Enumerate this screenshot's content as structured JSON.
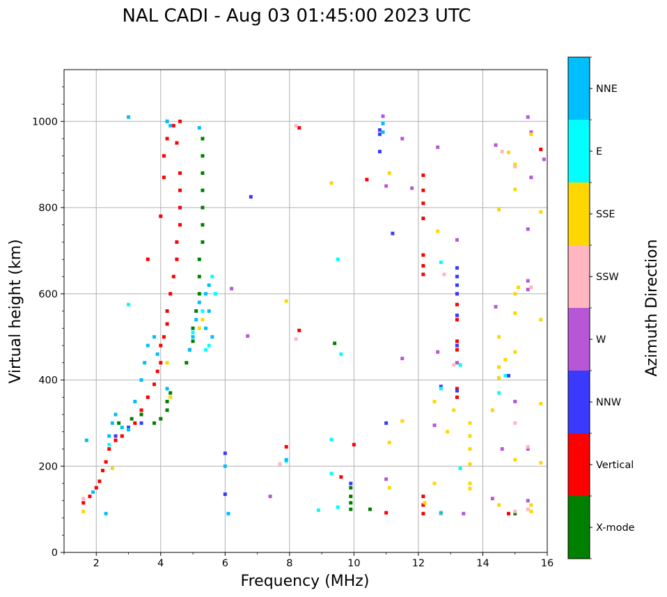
{
  "chart_data": {
    "type": "scatter",
    "title": "NAL CADI - Aug 03 01:45:00 2023 UTC",
    "xlabel": "Frequency (MHz)",
    "ylabel": "Virtual height (km)",
    "xlim": [
      1,
      16
    ],
    "ylim": [
      0,
      1120
    ],
    "xticks": [
      "2",
      "4",
      "6",
      "8",
      "10",
      "12",
      "14",
      "16"
    ],
    "yticks": [
      "0",
      "200",
      "400",
      "600",
      "800",
      "1000"
    ],
    "grid": true,
    "colorbar": {
      "label": "Azimuth Direction",
      "position": "right",
      "categories": [
        {
          "name": "X-mode",
          "color": "#008000"
        },
        {
          "name": "Vertical",
          "color": "#ff0000"
        },
        {
          "name": "NNW",
          "color": "#3a3aff"
        },
        {
          "name": "W",
          "color": "#b857d6"
        },
        {
          "name": "SSW",
          "color": "#ffb6c1"
        },
        {
          "name": "SSE",
          "color": "#ffd700"
        },
        {
          "name": "E",
          "color": "#00ffff"
        },
        {
          "name": "NNE",
          "color": "#00bfff"
        }
      ]
    },
    "series": [
      {
        "name": "X-mode",
        "points": [
          [
            2.7,
            300
          ],
          [
            3.1,
            310
          ],
          [
            3.4,
            320
          ],
          [
            3.8,
            300
          ],
          [
            4.0,
            310
          ],
          [
            4.2,
            330
          ],
          [
            4.2,
            350
          ],
          [
            4.3,
            370
          ],
          [
            4.8,
            440
          ],
          [
            4.9,
            470
          ],
          [
            5.0,
            490
          ],
          [
            5.0,
            520
          ],
          [
            5.1,
            560
          ],
          [
            5.2,
            600
          ],
          [
            5.2,
            640
          ],
          [
            5.2,
            680
          ],
          [
            5.3,
            720
          ],
          [
            5.3,
            760
          ],
          [
            5.3,
            800
          ],
          [
            5.3,
            840
          ],
          [
            5.3,
            880
          ],
          [
            5.3,
            920
          ],
          [
            5.3,
            960
          ],
          [
            9.4,
            485
          ],
          [
            9.9,
            100
          ],
          [
            9.9,
            115
          ],
          [
            9.9,
            130
          ],
          [
            9.9,
            150
          ],
          [
            10.5,
            100
          ],
          [
            15.0,
            90
          ]
        ]
      },
      {
        "name": "Vertical",
        "points": [
          [
            1.6,
            115
          ],
          [
            1.8,
            130
          ],
          [
            2.0,
            150
          ],
          [
            2.1,
            165
          ],
          [
            2.2,
            190
          ],
          [
            2.3,
            210
          ],
          [
            2.4,
            240
          ],
          [
            2.6,
            260
          ],
          [
            2.8,
            270
          ],
          [
            3.0,
            285
          ],
          [
            3.2,
            300
          ],
          [
            3.4,
            330
          ],
          [
            3.6,
            360
          ],
          [
            3.8,
            390
          ],
          [
            3.9,
            420
          ],
          [
            4.0,
            440
          ],
          [
            4.0,
            480
          ],
          [
            4.1,
            500
          ],
          [
            4.2,
            530
          ],
          [
            4.2,
            560
          ],
          [
            4.3,
            600
          ],
          [
            4.4,
            640
          ],
          [
            4.5,
            680
          ],
          [
            4.5,
            720
          ],
          [
            4.6,
            760
          ],
          [
            4.6,
            800
          ],
          [
            4.6,
            840
          ],
          [
            4.6,
            880
          ],
          [
            4.0,
            780
          ],
          [
            4.1,
            870
          ],
          [
            4.1,
            920
          ],
          [
            4.2,
            960
          ],
          [
            4.2,
            1000
          ],
          [
            4.4,
            990
          ],
          [
            4.5,
            950
          ],
          [
            4.6,
            1000
          ],
          [
            3.6,
            680
          ],
          [
            8.3,
            515
          ],
          [
            8.3,
            985
          ],
          [
            7.9,
            245
          ],
          [
            9.6,
            175
          ],
          [
            10.0,
            250
          ],
          [
            10.4,
            865
          ],
          [
            11.0,
            92
          ],
          [
            12.15,
            875
          ],
          [
            12.15,
            840
          ],
          [
            12.15,
            810
          ],
          [
            12.15,
            775
          ],
          [
            12.15,
            690
          ],
          [
            12.15,
            665
          ],
          [
            12.15,
            645
          ],
          [
            12.15,
            130
          ],
          [
            12.15,
            110
          ],
          [
            12.15,
            90
          ],
          [
            13.2,
            600
          ],
          [
            13.2,
            575
          ],
          [
            13.2,
            540
          ],
          [
            13.2,
            490
          ],
          [
            13.2,
            470
          ],
          [
            13.2,
            380
          ],
          [
            13.2,
            360
          ],
          [
            14.8,
            90
          ],
          [
            15.8,
            935
          ]
        ]
      },
      {
        "name": "NNW",
        "points": [
          [
            6.8,
            825
          ],
          [
            10.8,
            980
          ],
          [
            10.8,
            930
          ],
          [
            10.8,
            970
          ],
          [
            11.2,
            740
          ],
          [
            11.0,
            300
          ],
          [
            9.9,
            160
          ],
          [
            12.7,
            385
          ],
          [
            12.7,
            90
          ],
          [
            13.2,
            660
          ],
          [
            13.2,
            640
          ],
          [
            13.2,
            620
          ],
          [
            13.2,
            600
          ],
          [
            13.2,
            550
          ],
          [
            13.2,
            480
          ],
          [
            13.2,
            375
          ],
          [
            14.8,
            410
          ],
          [
            6.0,
            135
          ],
          [
            6.0,
            230
          ],
          [
            2.6,
            270
          ],
          [
            3.0,
            290
          ],
          [
            3.4,
            300
          ]
        ]
      },
      {
        "name": "W",
        "points": [
          [
            6.2,
            612
          ],
          [
            6.7,
            502
          ],
          [
            10.9,
            1012
          ],
          [
            11.0,
            850
          ],
          [
            11.0,
            170
          ],
          [
            11.5,
            450
          ],
          [
            11.5,
            960
          ],
          [
            11.8,
            845
          ],
          [
            12.6,
            465
          ],
          [
            12.6,
            940
          ],
          [
            12.5,
            295
          ],
          [
            13.2,
            725
          ],
          [
            13.2,
            440
          ],
          [
            13.4,
            90
          ],
          [
            14.3,
            125
          ],
          [
            14.4,
            570
          ],
          [
            14.4,
            945
          ],
          [
            14.6,
            240
          ],
          [
            15.0,
            350
          ],
          [
            15.4,
            1010
          ],
          [
            15.4,
            750
          ],
          [
            15.4,
            630
          ],
          [
            15.4,
            610
          ],
          [
            15.4,
            120
          ],
          [
            15.4,
            240
          ],
          [
            15.5,
            870
          ],
          [
            15.5,
            975
          ],
          [
            15.9,
            912
          ],
          [
            7.4,
            130
          ]
        ]
      },
      {
        "name": "SSW",
        "points": [
          [
            1.6,
            125
          ],
          [
            8.2,
            495
          ],
          [
            8.2,
            990
          ],
          [
            7.7,
            205
          ],
          [
            12.8,
            645
          ],
          [
            13.1,
            435
          ],
          [
            14.3,
            330
          ],
          [
            14.6,
            930
          ],
          [
            15.0,
            300
          ],
          [
            15.0,
            895
          ],
          [
            15.4,
            245
          ],
          [
            15.4,
            100
          ],
          [
            15.5,
            615
          ],
          [
            15.0,
            95
          ]
        ]
      },
      {
        "name": "SSE",
        "points": [
          [
            1.6,
            95
          ],
          [
            2.5,
            195
          ],
          [
            4.2,
            440
          ],
          [
            4.3,
            360
          ],
          [
            7.9,
            583
          ],
          [
            9.3,
            857
          ],
          [
            11.1,
            880
          ],
          [
            11.1,
            150
          ],
          [
            11.1,
            255
          ],
          [
            11.5,
            305
          ],
          [
            12.2,
            115
          ],
          [
            12.5,
            160
          ],
          [
            12.5,
            350
          ],
          [
            12.6,
            745
          ],
          [
            12.7,
            90
          ],
          [
            12.9,
            280
          ],
          [
            13.1,
            330
          ],
          [
            13.6,
            300
          ],
          [
            13.6,
            270
          ],
          [
            13.6,
            240
          ],
          [
            13.6,
            205
          ],
          [
            13.6,
            160
          ],
          [
            13.6,
            148
          ],
          [
            14.3,
            330
          ],
          [
            14.5,
            500
          ],
          [
            14.5,
            430
          ],
          [
            14.5,
            405
          ],
          [
            14.5,
            795
          ],
          [
            14.5,
            110
          ],
          [
            14.7,
            447
          ],
          [
            14.8,
            928
          ],
          [
            15.0,
            900
          ],
          [
            15.0,
            842
          ],
          [
            15.0,
            600
          ],
          [
            15.0,
            555
          ],
          [
            15.0,
            465
          ],
          [
            15.0,
            215
          ],
          [
            15.1,
            615
          ],
          [
            15.5,
            970
          ],
          [
            15.5,
            110
          ],
          [
            15.5,
            95
          ],
          [
            15.8,
            790
          ],
          [
            15.8,
            540
          ],
          [
            15.8,
            345
          ],
          [
            15.8,
            208
          ],
          [
            5.2,
            520
          ],
          [
            5.3,
            540
          ]
        ]
      },
      {
        "name": "E",
        "points": [
          [
            2.4,
            250
          ],
          [
            3.0,
            575
          ],
          [
            5.3,
            560
          ],
          [
            5.5,
            480
          ],
          [
            5.7,
            600
          ],
          [
            5.6,
            640
          ],
          [
            7.9,
            212
          ],
          [
            8.9,
            98
          ],
          [
            9.3,
            183
          ],
          [
            9.3,
            262
          ],
          [
            9.5,
            105
          ],
          [
            9.5,
            680
          ],
          [
            9.6,
            460
          ],
          [
            12.7,
            673
          ],
          [
            12.7,
            380
          ],
          [
            13.3,
            195
          ],
          [
            13.3,
            435
          ],
          [
            14.5,
            370
          ],
          [
            14.7,
            410
          ],
          [
            5.0,
            510
          ],
          [
            5.4,
            470
          ]
        ]
      },
      {
        "name": "NNE",
        "points": [
          [
            1.7,
            260
          ],
          [
            1.9,
            140
          ],
          [
            2.3,
            90
          ],
          [
            2.4,
            270
          ],
          [
            2.5,
            300
          ],
          [
            2.6,
            320
          ],
          [
            2.8,
            290
          ],
          [
            3.0,
            285
          ],
          [
            3.2,
            350
          ],
          [
            3.4,
            400
          ],
          [
            3.5,
            440
          ],
          [
            3.6,
            480
          ],
          [
            3.8,
            500
          ],
          [
            3.9,
            460
          ],
          [
            4.2,
            380
          ],
          [
            4.2,
            1000
          ],
          [
            4.3,
            990
          ],
          [
            3.0,
            1010
          ],
          [
            4.9,
            470
          ],
          [
            5.0,
            500
          ],
          [
            5.1,
            540
          ],
          [
            5.2,
            580
          ],
          [
            5.4,
            600
          ],
          [
            5.4,
            520
          ],
          [
            5.5,
            560
          ],
          [
            5.5,
            620
          ],
          [
            5.6,
            500
          ],
          [
            5.2,
            985
          ],
          [
            6.0,
            200
          ],
          [
            6.1,
            90
          ],
          [
            7.9,
            215
          ],
          [
            10.9,
            975
          ],
          [
            10.9,
            995
          ],
          [
            12.7,
            92
          ]
        ]
      }
    ]
  }
}
